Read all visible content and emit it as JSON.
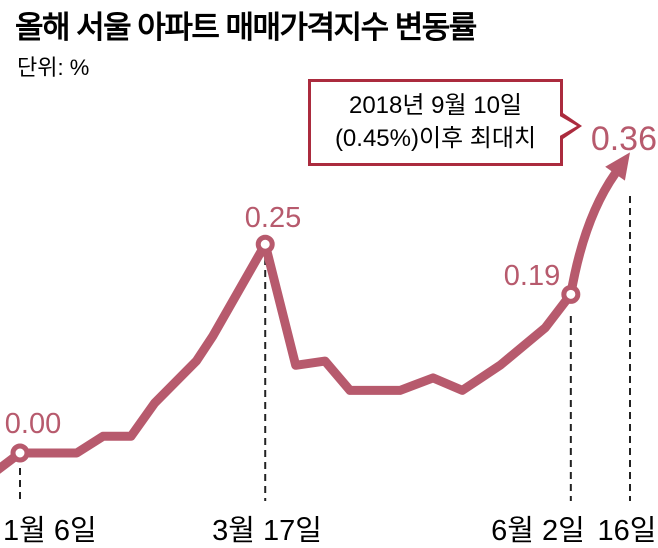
{
  "title": "올해 서울 아파트 매매가격지수 변동률",
  "unit_label": "단위: %",
  "annotation": {
    "line1": "2018년 9월 10일",
    "line2": "(0.45%)이후 최대치"
  },
  "value_labels": {
    "start": "0.00",
    "peak": "0.25",
    "june": "0.19",
    "latest": "0.36"
  },
  "axis_labels": {
    "start": "1월 6일",
    "peak": "3월 17일",
    "june": "6월 2일",
    "latest": "16일"
  },
  "colors": {
    "line": "#b75a6d",
    "annotation_border": "#ab2b3e",
    "dash": "#222222",
    "text": "#000000",
    "background": "#ffffff"
  },
  "chart_data": {
    "type": "line",
    "title": "올해 서울 아파트 매매가격지수 변동률",
    "unit": "%",
    "ylim": [
      -0.05,
      0.4
    ],
    "grid": false,
    "legend": false,
    "x_tick_labels": [
      "1월 6일",
      "3월 17일",
      "6월 2일",
      "16일"
    ],
    "annotated_points": [
      {
        "x_label": "1월 6일",
        "value": 0.0
      },
      {
        "x_label": "3월 17일",
        "value": 0.25
      },
      {
        "x_label": "6월 2일",
        "value": 0.19
      },
      {
        "x_label": "16일",
        "value": 0.36
      }
    ],
    "series": [
      {
        "name": "서울 아파트 매매가격지수 변동률(%)",
        "points": [
          {
            "x": -0.036,
            "v": -0.02
          },
          {
            "x": 0.0,
            "v": 0.0
          },
          {
            "x": 0.093,
            "v": 0.0
          },
          {
            "x": 0.136,
            "v": 0.02
          },
          {
            "x": 0.182,
            "v": 0.02
          },
          {
            "x": 0.221,
            "v": 0.06
          },
          {
            "x": 0.289,
            "v": 0.11
          },
          {
            "x": 0.316,
            "v": 0.14
          },
          {
            "x": 0.402,
            "v": 0.25
          },
          {
            "x": 0.452,
            "v": 0.105
          },
          {
            "x": 0.5,
            "v": 0.11
          },
          {
            "x": 0.541,
            "v": 0.075
          },
          {
            "x": 0.623,
            "v": 0.075
          },
          {
            "x": 0.677,
            "v": 0.09
          },
          {
            "x": 0.725,
            "v": 0.075
          },
          {
            "x": 0.787,
            "v": 0.105
          },
          {
            "x": 0.861,
            "v": 0.15
          },
          {
            "x": 0.903,
            "v": 0.19
          },
          {
            "x": 1.0,
            "v": 0.36
          }
        ]
      }
    ]
  }
}
